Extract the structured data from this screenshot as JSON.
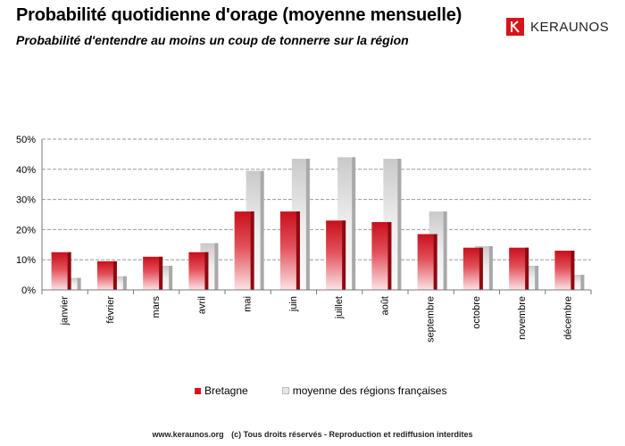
{
  "header": {
    "title": "Probabilité quotidienne d'orage (moyenne mensuelle)",
    "subtitle": "Probabilité d'entendre au moins un coup de tonnerre sur la région"
  },
  "brand": {
    "name": "KERAUNOS",
    "color": "#d7141a"
  },
  "footer": {
    "site": "www.keraunos.org",
    "rights": "(c) Tous droits réservés - Reproduction et rediffusion interdites"
  },
  "chart_data": {
    "type": "bar",
    "categories": [
      "janvier",
      "février",
      "mars",
      "avril",
      "mai",
      "juin",
      "juillet",
      "août",
      "septembre",
      "octobre",
      "novembre",
      "décembre"
    ],
    "series": [
      {
        "name": "Bretagne",
        "color": "#d7141a",
        "values": [
          12.5,
          9.5,
          11,
          12.5,
          26,
          26,
          23,
          22.5,
          18.5,
          14,
          14,
          13
        ]
      },
      {
        "name": "moyenne des régions françaises",
        "color": "#d9d9d9",
        "values": [
          4,
          4.5,
          8,
          15.5,
          39.5,
          43.5,
          44,
          43.5,
          26,
          14.5,
          8,
          5
        ]
      }
    ],
    "ylim": [
      0,
      50
    ],
    "yticks": [
      "0%",
      "10%",
      "20%",
      "30%",
      "40%",
      "50%"
    ],
    "grid": true,
    "legend": "bottom"
  }
}
